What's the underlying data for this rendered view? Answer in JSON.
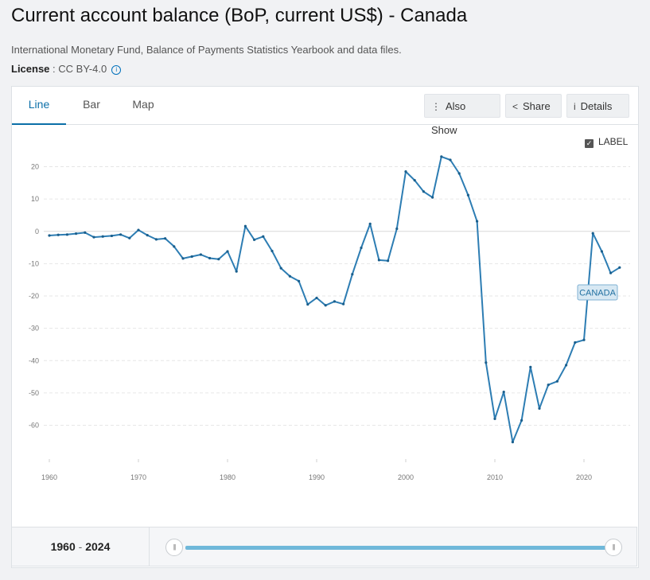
{
  "header": {
    "title": "Current account balance (BoP, current US$) - Canada",
    "source": "International Monetary Fund, Balance of Payments Statistics Yearbook and data files.",
    "license_label": "License",
    "license_sep": " : ",
    "license_value": "CC BY-4.0",
    "info_icon": "i"
  },
  "tabs": [
    "Line",
    "Bar",
    "Map"
  ],
  "toolbar": {
    "also_show": "Also Show",
    "share": "Share",
    "details": "Details",
    "also_show_icon": "⋮",
    "share_icon": "<",
    "details_icon": "i"
  },
  "label_toggle": {
    "label": "LABEL",
    "checked": true,
    "check_glyph": "✓"
  },
  "range": {
    "start": "1960",
    "sep": " - ",
    "end": "2024",
    "handle_glyph": "|||"
  },
  "chart_data": {
    "type": "line",
    "title": "",
    "xlabel": "",
    "ylabel": "",
    "xlim": [
      1960,
      2025
    ],
    "ylim": [
      -68,
      28
    ],
    "x_ticks": [
      1960,
      1970,
      1980,
      1990,
      2000,
      2010,
      2020
    ],
    "y_ticks": [
      20,
      10,
      0,
      -10,
      -20,
      -30,
      -40,
      -50,
      -60
    ],
    "grid": true,
    "color": "#2d7db3",
    "series": [
      {
        "name": "CANADA",
        "x": [
          1960,
          1961,
          1962,
          1963,
          1964,
          1965,
          1966,
          1967,
          1968,
          1969,
          1970,
          1971,
          1972,
          1973,
          1974,
          1975,
          1976,
          1977,
          1978,
          1979,
          1980,
          1981,
          1982,
          1983,
          1984,
          1985,
          1986,
          1987,
          1988,
          1989,
          1990,
          1991,
          1992,
          1993,
          1994,
          1995,
          1996,
          1997,
          1998,
          1999,
          2000,
          2001,
          2002,
          2003,
          2004,
          2005,
          2006,
          2007,
          2008,
          2009,
          2010,
          2011,
          2012,
          2013,
          2014,
          2015,
          2016,
          2017,
          2018,
          2019,
          2020,
          2021,
          2022,
          2023,
          2024
        ],
        "y": [
          -1.3,
          -1.1,
          -1.0,
          -0.7,
          -0.4,
          -1.8,
          -1.6,
          -1.4,
          -1.0,
          -2.1,
          0.4,
          -1.2,
          -2.5,
          -2.2,
          -4.7,
          -8.4,
          -7.8,
          -7.2,
          -8.3,
          -8.6,
          -6.2,
          -12.4,
          1.6,
          -2.6,
          -1.6,
          -6.1,
          -11.4,
          -13.9,
          -15.4,
          -22.6,
          -20.6,
          -22.9,
          -21.7,
          -22.5,
          -13.3,
          -5.1,
          2.3,
          -8.9,
          -9.1,
          0.8,
          18.5,
          15.8,
          12.3,
          10.5,
          23.1,
          22.1,
          17.9,
          11.2,
          3.1,
          -40.6,
          -58.0,
          -49.7,
          -65.2,
          -58.5,
          -42.0,
          -54.8,
          -47.5,
          -46.4,
          -41.4,
          -34.4,
          -33.6,
          -0.6,
          -6.2,
          -12.9,
          -11.2
        ]
      }
    ]
  }
}
